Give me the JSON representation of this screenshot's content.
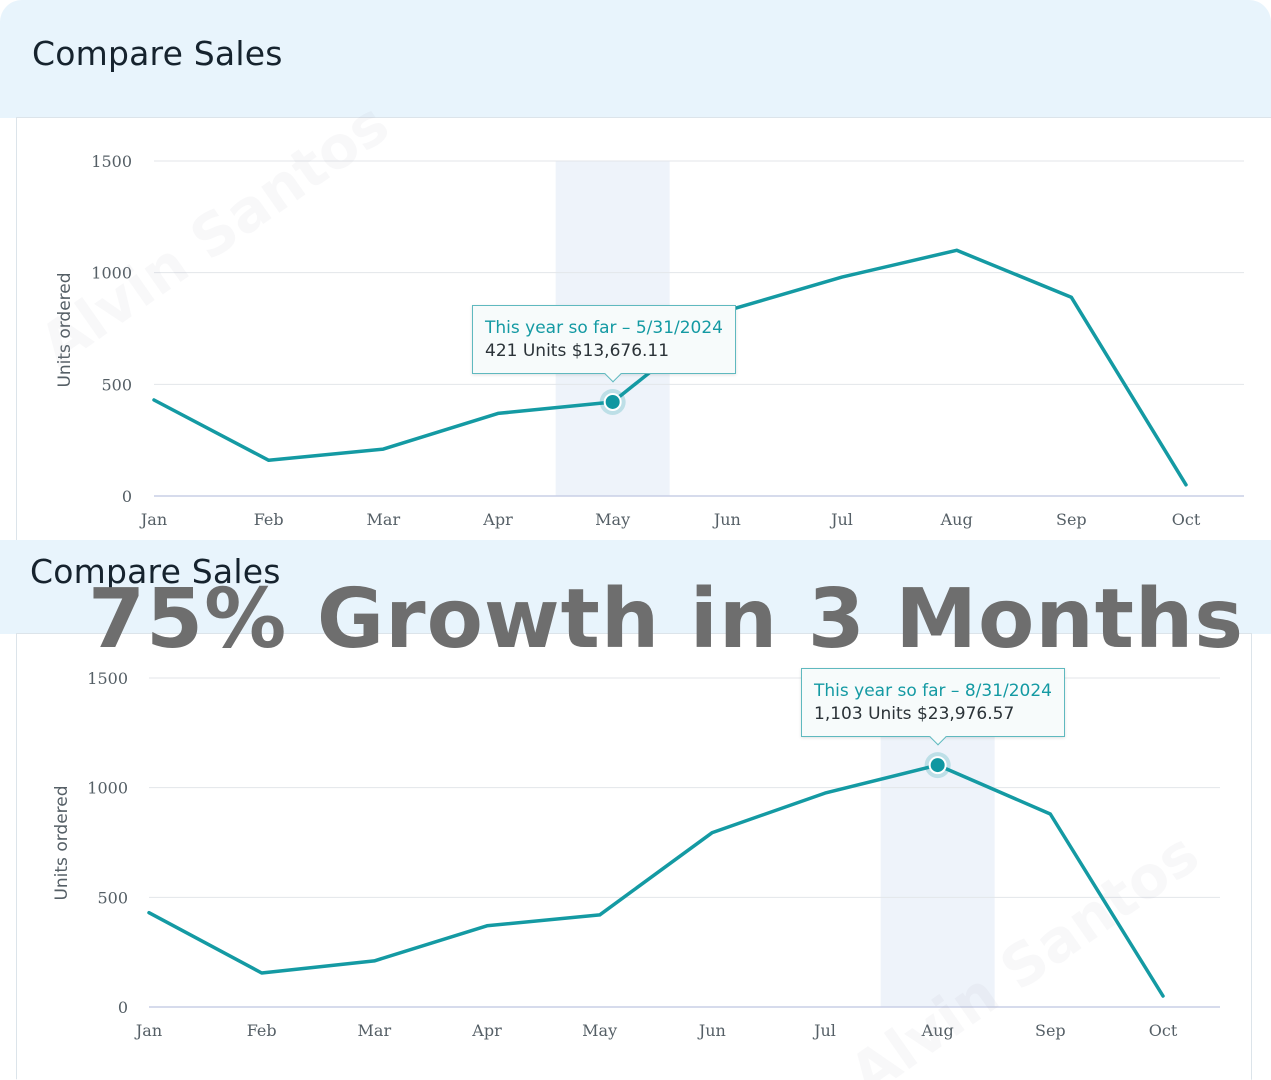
{
  "headline": "75% Growth in 3 Months",
  "watermark": "Alvin Santos",
  "colors": {
    "line": "#149aa3",
    "header_bg": "#e8f4fc",
    "highlight_band": "#eef3fa",
    "headline_text": "#6e6e6e"
  },
  "panels": [
    {
      "title": "Compare Sales",
      "tooltip": {
        "title": "This year so far – 5/31/2024",
        "body": "421 Units $13,676.11"
      }
    },
    {
      "title": "Compare Sales",
      "tooltip": {
        "title": "This year so far – 8/31/2024",
        "body": "1,103 Units $23,976.57"
      }
    }
  ],
  "chart_data": [
    {
      "type": "line",
      "title": "Compare Sales",
      "ylabel": "Units ordered",
      "xlabel": "",
      "categories": [
        "Jan",
        "Feb",
        "Mar",
        "Apr",
        "May",
        "Jun",
        "Jul",
        "Aug",
        "Sep",
        "Oct"
      ],
      "ylim": [
        0,
        1500
      ],
      "yticks": [
        0,
        500,
        1000,
        1500
      ],
      "series": [
        {
          "values": [
            430,
            160,
            210,
            370,
            421,
            830,
            980,
            1100,
            890,
            50
          ]
        }
      ],
      "highlight": {
        "category": "May",
        "value": 421
      },
      "grid": true,
      "legend": "none"
    },
    {
      "type": "line",
      "title": "Compare Sales",
      "ylabel": "Units ordered",
      "xlabel": "",
      "categories": [
        "Jan",
        "Feb",
        "Mar",
        "Apr",
        "May",
        "Jun",
        "Jul",
        "Aug",
        "Sep",
        "Oct"
      ],
      "ylim": [
        0,
        1500
      ],
      "yticks": [
        0,
        500,
        1000,
        1500
      ],
      "series": [
        {
          "values": [
            430,
            155,
            210,
            370,
            420,
            795,
            975,
            1103,
            880,
            50
          ]
        }
      ],
      "highlight": {
        "category": "Aug",
        "value": 1103
      },
      "grid": true,
      "legend": "none"
    }
  ]
}
